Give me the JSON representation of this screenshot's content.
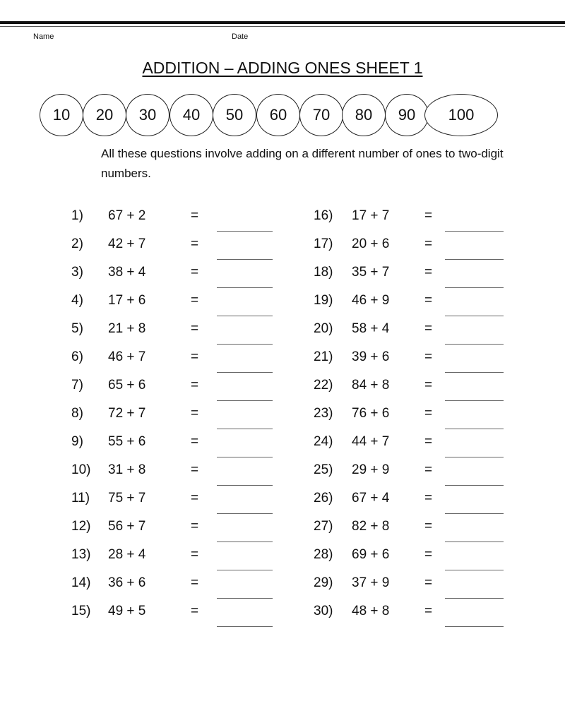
{
  "header": {
    "name_label": "Name",
    "date_label": "Date",
    "title": "ADDITION – ADDING ONES SHEET 1"
  },
  "number_line": [
    "10",
    "20",
    "30",
    "40",
    "50",
    "60",
    "70",
    "80",
    "90",
    "100"
  ],
  "intro": "All these questions involve adding on a different number of ones to two-digit numbers.",
  "questions": [
    {
      "n": "1)",
      "expr": "67 + 2"
    },
    {
      "n": "2)",
      "expr": "42 + 7"
    },
    {
      "n": "3)",
      "expr": "38 + 4"
    },
    {
      "n": "4)",
      "expr": "17 + 6"
    },
    {
      "n": "5)",
      "expr": "21 + 8"
    },
    {
      "n": "6)",
      "expr": "46 + 7"
    },
    {
      "n": "7)",
      "expr": "65 + 6"
    },
    {
      "n": "8)",
      "expr": "72 + 7"
    },
    {
      "n": "9)",
      "expr": "55 + 6"
    },
    {
      "n": "10)",
      "expr": "31 + 8"
    },
    {
      "n": "11)",
      "expr": "75 + 7"
    },
    {
      "n": "12)",
      "expr": "56 + 7"
    },
    {
      "n": "13)",
      "expr": "28 + 4"
    },
    {
      "n": "14)",
      "expr": "36 + 6"
    },
    {
      "n": "15)",
      "expr": "49 + 5"
    },
    {
      "n": "16)",
      "expr": "17 + 7"
    },
    {
      "n": "17)",
      "expr": "20 + 6"
    },
    {
      "n": "18)",
      "expr": "35 + 7"
    },
    {
      "n": "19)",
      "expr": "46 + 9"
    },
    {
      "n": "20)",
      "expr": "58 + 4"
    },
    {
      "n": "21)",
      "expr": "39 + 6"
    },
    {
      "n": "22)",
      "expr": "84 + 8"
    },
    {
      "n": "23)",
      "expr": "76 + 6"
    },
    {
      "n": "24)",
      "expr": "44 + 7"
    },
    {
      "n": "25)",
      "expr": "29 + 9"
    },
    {
      "n": "26)",
      "expr": "67 + 4"
    },
    {
      "n": "27)",
      "expr": "82 + 8"
    },
    {
      "n": "28)",
      "expr": "69 + 6"
    },
    {
      "n": "29)",
      "expr": "37 + 9"
    },
    {
      "n": "30)",
      "expr": "48 + 8"
    }
  ],
  "equals": "="
}
